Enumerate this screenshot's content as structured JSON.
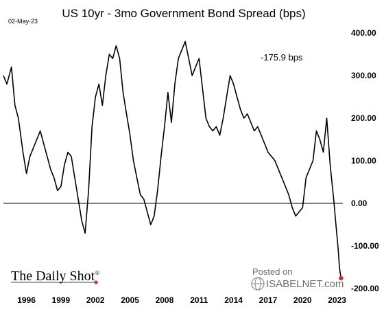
{
  "chart_data": {
    "type": "line",
    "title": "US 10yr - 3mo Government Bond Spread (bps)",
    "date_label": "02-May-23",
    "annotation": "-175.9 bps",
    "ylim": [
      -200,
      400
    ],
    "yticks": [
      "400.00",
      "300.00",
      "200.00",
      "100.00",
      "0.00",
      "-100.00",
      "-200.00"
    ],
    "xlim": [
      1994.0,
      2023.5
    ],
    "xticks": [
      "1996",
      "1999",
      "2002",
      "2005",
      "2008",
      "2011",
      "2014",
      "2017",
      "2020",
      "2023"
    ],
    "grid": false,
    "zero_line": true,
    "series": [
      {
        "color": "#000000",
        "x": [
          1994.0,
          1994.3,
          1994.7,
          1995.0,
          1995.3,
          1995.7,
          1996.0,
          1996.3,
          1996.6,
          1996.9,
          1997.2,
          1997.5,
          1997.8,
          1998.1,
          1998.4,
          1998.7,
          1999.0,
          1999.3,
          1999.6,
          1999.9,
          2000.2,
          2000.5,
          2000.8,
          2001.1,
          2001.4,
          2001.7,
          2002.0,
          2002.3,
          2002.6,
          2002.9,
          2003.2,
          2003.5,
          2003.8,
          2004.1,
          2004.4,
          2004.7,
          2005.0,
          2005.3,
          2005.6,
          2005.9,
          2006.2,
          2006.5,
          2006.8,
          2007.1,
          2007.4,
          2007.7,
          2008.0,
          2008.3,
          2008.6,
          2008.9,
          2009.2,
          2009.5,
          2009.8,
          2010.1,
          2010.4,
          2010.7,
          2011.0,
          2011.3,
          2011.6,
          2011.9,
          2012.2,
          2012.5,
          2012.8,
          2013.1,
          2013.4,
          2013.7,
          2014.0,
          2014.3,
          2014.6,
          2014.9,
          2015.2,
          2015.5,
          2015.8,
          2016.1,
          2016.4,
          2016.7,
          2017.0,
          2017.3,
          2017.6,
          2017.9,
          2018.2,
          2018.5,
          2018.8,
          2019.1,
          2019.4,
          2019.7,
          2020.0,
          2020.3,
          2020.6,
          2020.9,
          2021.2,
          2021.5,
          2021.8,
          2022.1,
          2022.4,
          2022.7,
          2022.9,
          2023.1,
          2023.2,
          2023.34
        ],
        "y": [
          300,
          280,
          320,
          230,
          200,
          120,
          70,
          110,
          130,
          150,
          170,
          140,
          110,
          80,
          60,
          30,
          40,
          90,
          120,
          110,
          60,
          10,
          -40,
          -70,
          30,
          180,
          250,
          280,
          230,
          300,
          350,
          340,
          370,
          340,
          260,
          210,
          160,
          100,
          60,
          20,
          10,
          -20,
          -50,
          -30,
          30,
          110,
          180,
          260,
          190,
          280,
          340,
          360,
          380,
          340,
          300,
          320,
          340,
          270,
          200,
          180,
          170,
          180,
          160,
          200,
          250,
          300,
          280,
          250,
          220,
          200,
          210,
          190,
          170,
          180,
          160,
          140,
          120,
          110,
          100,
          80,
          60,
          40,
          20,
          -10,
          -30,
          -20,
          -10,
          60,
          80,
          100,
          170,
          150,
          120,
          200,
          90,
          10,
          -50,
          -110,
          -150,
          -175.9
        ]
      }
    ]
  },
  "brand": {
    "logo_text": "The Daily Shot",
    "logo_mark": "®"
  },
  "watermark": {
    "posted": "Posted on",
    "site": "ISABELNET.com"
  },
  "colors": {
    "line": "#000000",
    "end_marker": "#e0282a",
    "watermark": "#6d6d6d"
  }
}
